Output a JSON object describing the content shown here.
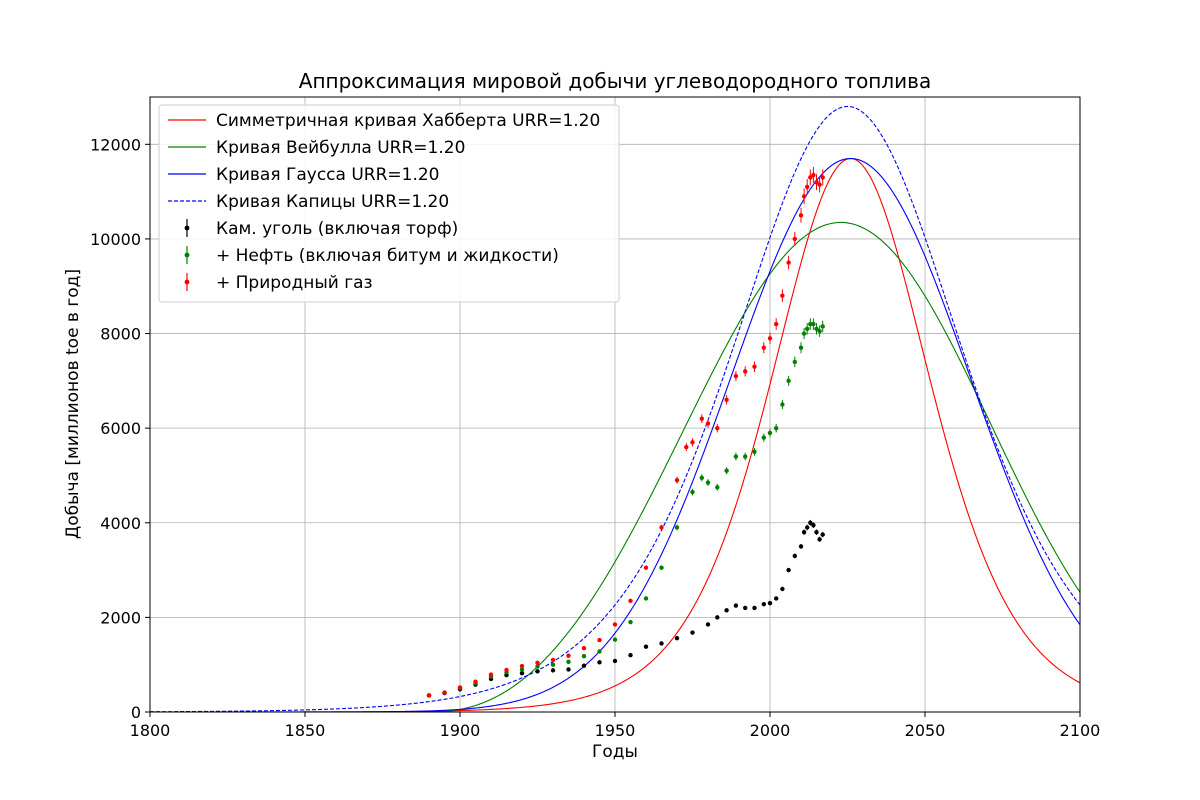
{
  "chart_data": {
    "type": "line",
    "title": "Аппроксимация мировой добычи углеводородного топлива",
    "xlabel": "Годы",
    "ylabel": "Добыча [миллионов toe в год]",
    "xlim": [
      1800,
      2100
    ],
    "ylim": [
      0,
      13000
    ],
    "x_ticks": [
      1800,
      1850,
      1900,
      1950,
      2000,
      2050,
      2100
    ],
    "y_ticks": [
      0,
      2000,
      4000,
      6000,
      8000,
      10000,
      12000
    ],
    "grid": true,
    "legend_position": "top-left",
    "curves": [
      {
        "name": "Симметричная кривая Хабберта URR=1.20",
        "model": "hubbert",
        "color": "#ff0000",
        "style": "solid",
        "peak_year": 2026,
        "peak_value": 11700,
        "width": 17.2
      },
      {
        "name": "Кривая Вейбулла URR=1.20",
        "model": "weibull",
        "color": "#008000",
        "style": "solid",
        "origin_year": 1890,
        "shape": 3.3,
        "scale": 148.2,
        "amplitude": 1200000
      },
      {
        "name": "Кривая Гаусса URR=1.20",
        "model": "gauss",
        "color": "#0000ff",
        "style": "solid",
        "peak_year": 2026,
        "peak_value": 11700,
        "sigma": 38.5
      },
      {
        "name": "Кривая Капицы URR=1.20",
        "model": "kapitsa",
        "color": "#0000ff",
        "style": "dashed",
        "peak_year": 2025,
        "peak_value": 12800,
        "width": 24.8
      }
    ],
    "series": [
      {
        "name": "Кам. уголь (включая торф)",
        "color": "#000000",
        "points": [
          [
            1890,
            350
          ],
          [
            1895,
            400
          ],
          [
            1900,
            480
          ],
          [
            1905,
            580
          ],
          [
            1910,
            700
          ],
          [
            1915,
            780
          ],
          [
            1920,
            820
          ],
          [
            1925,
            860
          ],
          [
            1930,
            880
          ],
          [
            1935,
            900
          ],
          [
            1940,
            980
          ],
          [
            1945,
            1050
          ],
          [
            1950,
            1080
          ],
          [
            1955,
            1200
          ],
          [
            1960,
            1380
          ],
          [
            1965,
            1450
          ],
          [
            1970,
            1560
          ],
          [
            1975,
            1680
          ],
          [
            1980,
            1850
          ],
          [
            1983,
            2000
          ],
          [
            1986,
            2150
          ],
          [
            1989,
            2250
          ],
          [
            1992,
            2200
          ],
          [
            1995,
            2200
          ],
          [
            1998,
            2280
          ],
          [
            2000,
            2300
          ],
          [
            2002,
            2400
          ],
          [
            2004,
            2600
          ],
          [
            2006,
            3000
          ],
          [
            2008,
            3300
          ],
          [
            2010,
            3500
          ],
          [
            2011,
            3800
          ],
          [
            2012,
            3900
          ],
          [
            2013,
            4000
          ],
          [
            2014,
            3950
          ],
          [
            2015,
            3800
          ],
          [
            2016,
            3650
          ],
          [
            2017,
            3750
          ]
        ]
      },
      {
        "name": "+ Нефть (включая битум и жидкости)",
        "color": "#008000",
        "points": [
          [
            1890,
            350
          ],
          [
            1895,
            410
          ],
          [
            1900,
            500
          ],
          [
            1905,
            610
          ],
          [
            1910,
            750
          ],
          [
            1915,
            840
          ],
          [
            1920,
            900
          ],
          [
            1925,
            960
          ],
          [
            1930,
            1000
          ],
          [
            1935,
            1060
          ],
          [
            1940,
            1180
          ],
          [
            1945,
            1280
          ],
          [
            1950,
            1530
          ],
          [
            1955,
            1900
          ],
          [
            1960,
            2400
          ],
          [
            1965,
            3050
          ],
          [
            1970,
            3900
          ],
          [
            1975,
            4650
          ],
          [
            1978,
            4950
          ],
          [
            1980,
            4850
          ],
          [
            1983,
            4750
          ],
          [
            1986,
            5100
          ],
          [
            1989,
            5400
          ],
          [
            1992,
            5400
          ],
          [
            1995,
            5500
          ],
          [
            1998,
            5800
          ],
          [
            2000,
            5900
          ],
          [
            2002,
            6000
          ],
          [
            2004,
            6500
          ],
          [
            2006,
            7000
          ],
          [
            2008,
            7400
          ],
          [
            2010,
            7700
          ],
          [
            2011,
            8000
          ],
          [
            2012,
            8100
          ],
          [
            2013,
            8200
          ],
          [
            2014,
            8200
          ],
          [
            2015,
            8100
          ],
          [
            2016,
            8050
          ],
          [
            2017,
            8150
          ]
        ]
      },
      {
        "name": "+ Природный газ",
        "color": "#ff0000",
        "points": [
          [
            1890,
            350
          ],
          [
            1895,
            410
          ],
          [
            1900,
            520
          ],
          [
            1905,
            640
          ],
          [
            1910,
            790
          ],
          [
            1915,
            890
          ],
          [
            1920,
            970
          ],
          [
            1925,
            1040
          ],
          [
            1930,
            1100
          ],
          [
            1935,
            1190
          ],
          [
            1940,
            1350
          ],
          [
            1945,
            1520
          ],
          [
            1950,
            1850
          ],
          [
            1955,
            2350
          ],
          [
            1960,
            3050
          ],
          [
            1965,
            3900
          ],
          [
            1970,
            4900
          ],
          [
            1973,
            5600
          ],
          [
            1975,
            5700
          ],
          [
            1978,
            6200
          ],
          [
            1980,
            6100
          ],
          [
            1983,
            6000
          ],
          [
            1986,
            6600
          ],
          [
            1989,
            7100
          ],
          [
            1992,
            7200
          ],
          [
            1995,
            7300
          ],
          [
            1998,
            7700
          ],
          [
            2000,
            7900
          ],
          [
            2002,
            8200
          ],
          [
            2004,
            8800
          ],
          [
            2006,
            9500
          ],
          [
            2008,
            10000
          ],
          [
            2010,
            10500
          ],
          [
            2011,
            10900
          ],
          [
            2012,
            11100
          ],
          [
            2013,
            11300
          ],
          [
            2014,
            11350
          ],
          [
            2015,
            11200
          ],
          [
            2016,
            11150
          ],
          [
            2017,
            11300
          ]
        ]
      }
    ]
  }
}
